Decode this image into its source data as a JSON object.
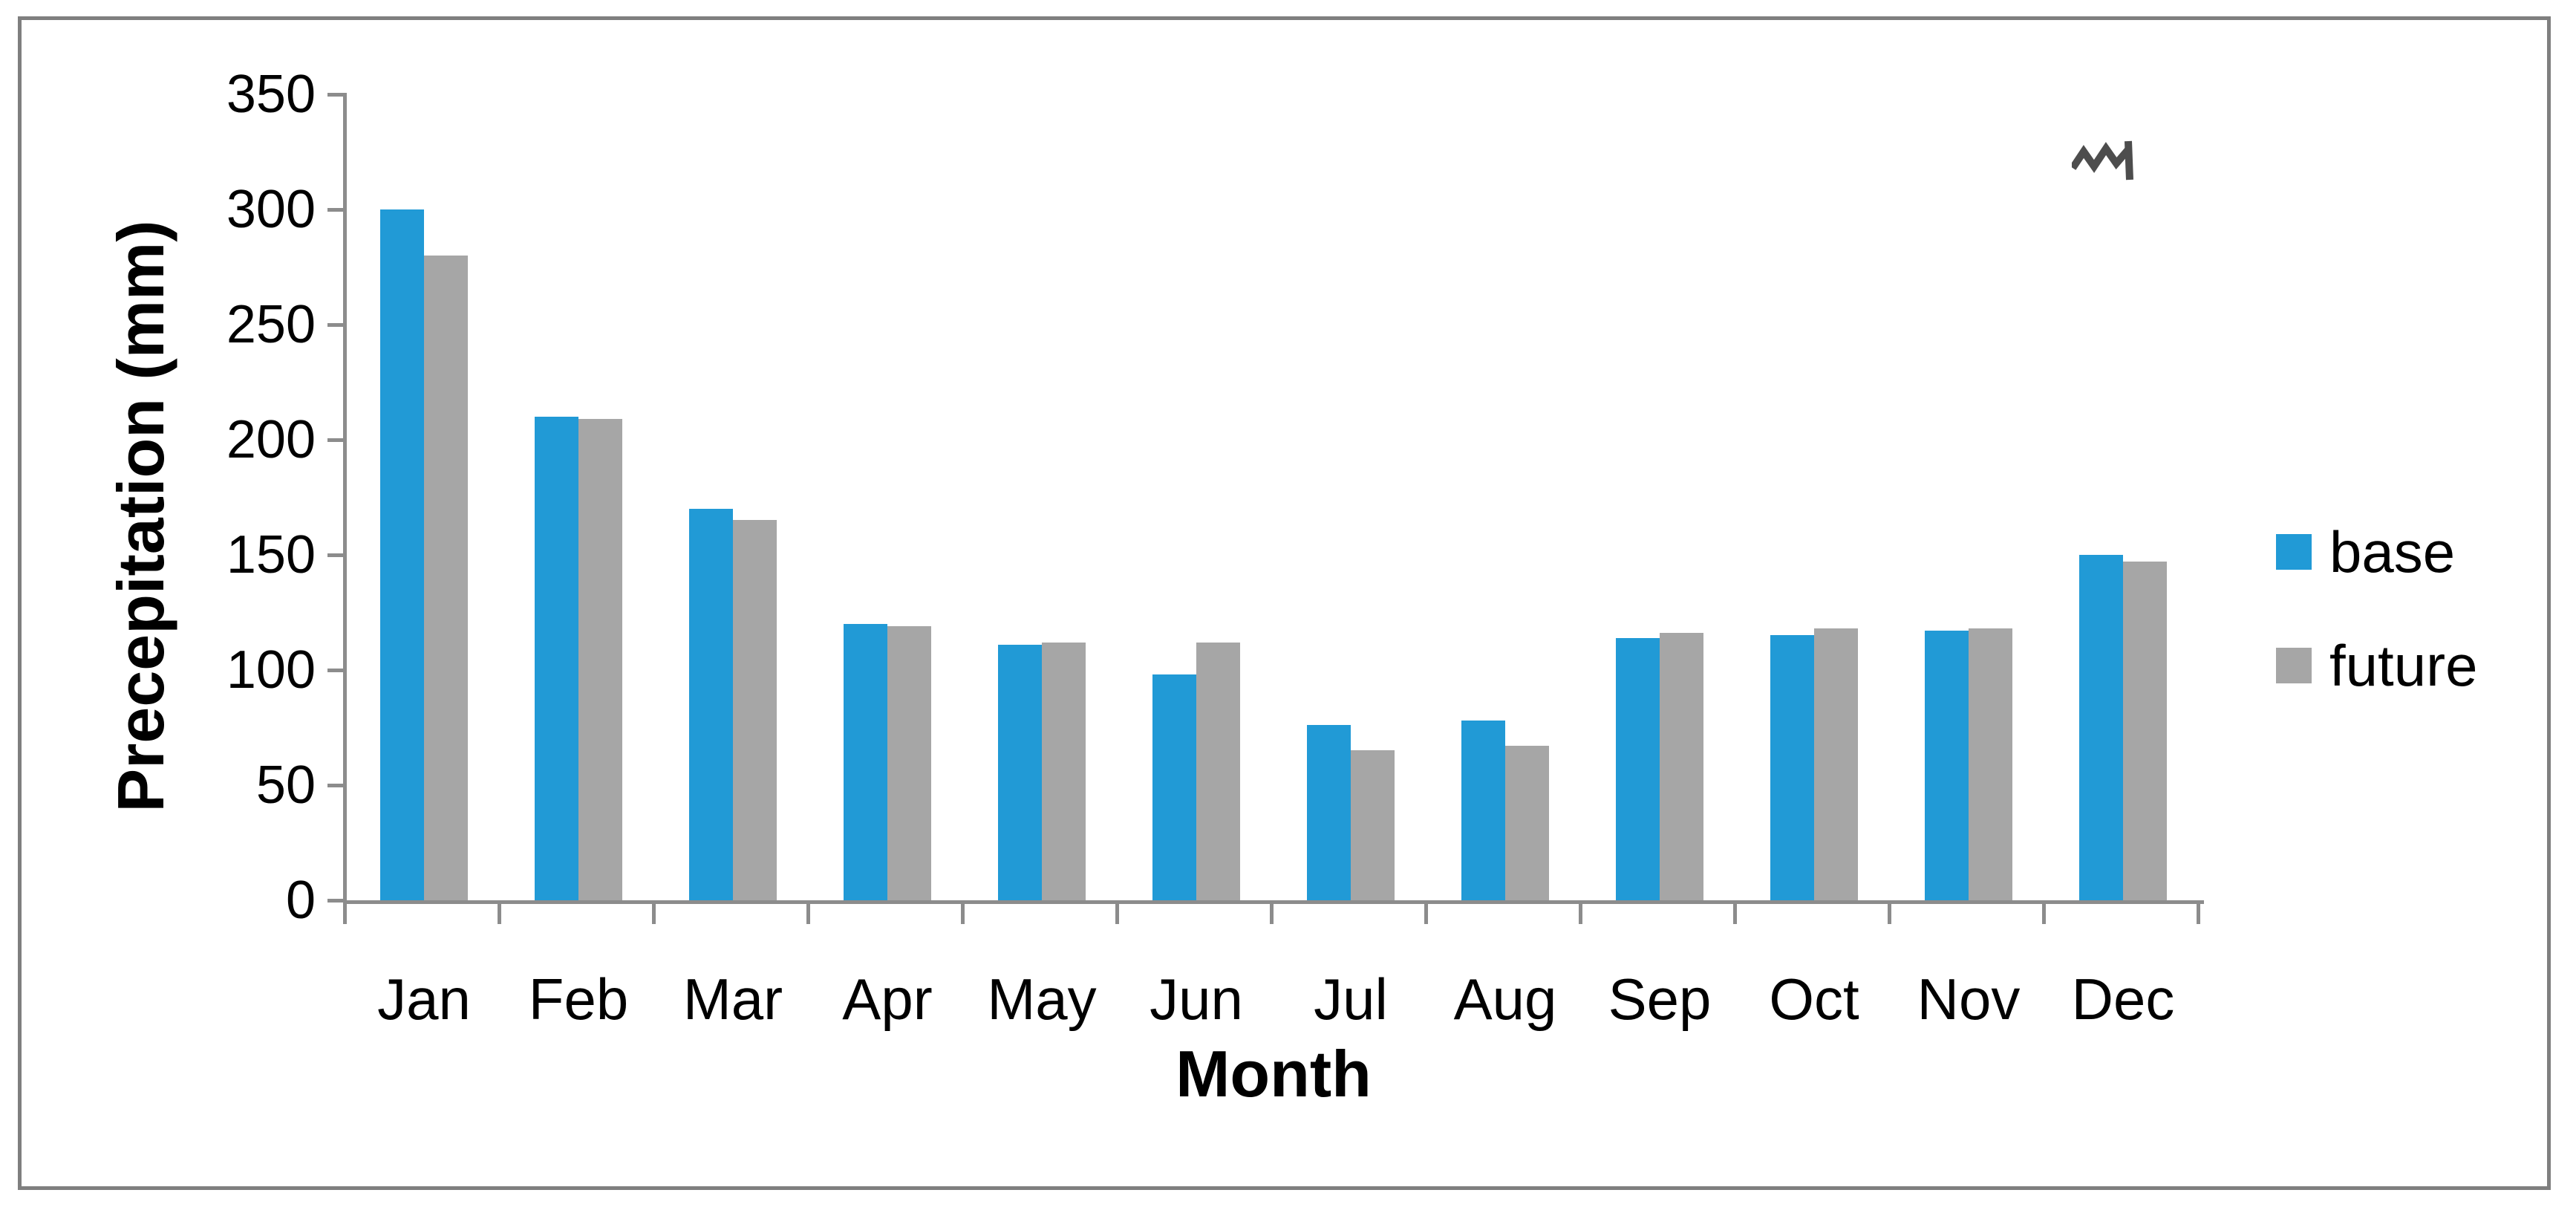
{
  "figure": {
    "border_color": "#7F7F7F",
    "background_color": "#FFFFFF",
    "axis_color": "#8C8C8C",
    "text_color": "#000000",
    "scribble_color": "#4D4D4D"
  },
  "chart_data": {
    "type": "bar",
    "title": "",
    "categories": [
      "Jan",
      "Feb",
      "Mar",
      "Apr",
      "May",
      "Jun",
      "Jul",
      "Aug",
      "Sep",
      "Oct",
      "Nov",
      "Dec"
    ],
    "series": [
      {
        "name": "base",
        "color": "#219AD6",
        "values": [
          300,
          210,
          170,
          120,
          111,
          98,
          76,
          78,
          114,
          115,
          117,
          150
        ]
      },
      {
        "name": "future",
        "color": "#A6A6A6",
        "values": [
          280,
          209,
          165,
          119,
          112,
          112,
          65,
          67,
          116,
          118,
          118,
          147
        ]
      }
    ],
    "xlabel": "Month",
    "ylabel": "Precepitation (mm)",
    "ylim": [
      0,
      350
    ],
    "ytick_step": 50,
    "yticks": [
      0,
      50,
      100,
      150,
      200,
      250,
      300,
      350
    ],
    "grid": false,
    "legend_position": "right",
    "legend_entries": [
      "base",
      "future"
    ]
  }
}
